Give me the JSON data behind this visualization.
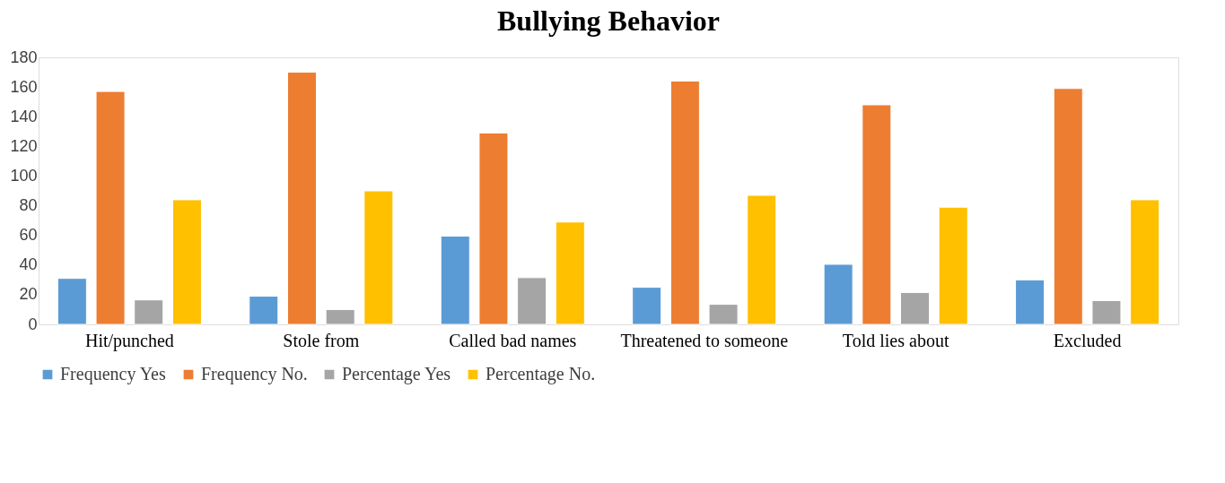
{
  "chart_data": {
    "type": "bar",
    "title": "Bullying Behavior",
    "categories": [
      "Hit/punched",
      "Stole from",
      "Called bad names",
      "Threatened to someone",
      "Told lies about",
      "Excluded"
    ],
    "series": [
      {
        "name": "Frequency Yes",
        "color": "#5b9bd5",
        "values": [
          31,
          19,
          59.5,
          25,
          40.5,
          30
        ]
      },
      {
        "name": "Frequency No.",
        "color": "#ed7d31",
        "values": [
          157,
          170,
          129,
          164,
          148,
          159
        ]
      },
      {
        "name": "Percentage Yes",
        "color": "#a5a5a5",
        "values": [
          16.5,
          10,
          31.5,
          13.5,
          21.5,
          16
        ]
      },
      {
        "name": "Percentage No.",
        "color": "#ffc000",
        "values": [
          84,
          90,
          69,
          87,
          79,
          84
        ]
      }
    ],
    "ylim": [
      0,
      180
    ],
    "yticks": [
      0,
      20,
      40,
      60,
      80,
      100,
      120,
      140,
      160,
      180
    ],
    "grid": false,
    "legend": "bottom"
  }
}
